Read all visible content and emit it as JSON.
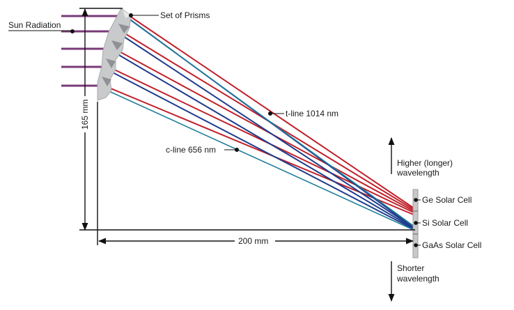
{
  "labels": {
    "sun_radiation": "Sun Radiation",
    "set_of_prisms": "Set of Prisms",
    "t_line": "t-line 1014 nm",
    "c_line": "c-line 656 nm",
    "higher_line1": "Higher (longer)",
    "higher_line2": "wavelength",
    "shorter_line1": "Shorter",
    "shorter_line2": "wavelength",
    "ge_cell": "Ge Solar Cell",
    "si_cell": "Si Solar Cell",
    "gaas_cell": "GaAs Solar Cell"
  },
  "dimensions": {
    "vertical": "165 mm",
    "horizontal": "200 mm"
  },
  "colors": {
    "long_wavelength_ray": "#c0202a",
    "short_wavelength_ray": "#1e3c8c",
    "teal_ray": "#1f7f9a",
    "prism": "#c9cacc",
    "detector_strip": "#c8c8c8"
  },
  "ray_count": 5
}
